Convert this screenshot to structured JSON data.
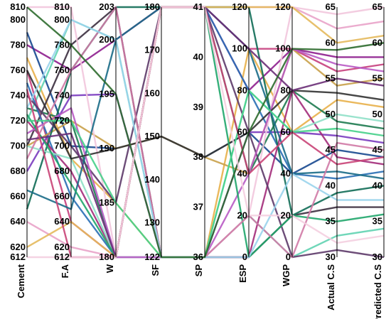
{
  "chart_data": {
    "type": "parallel_coordinates",
    "title": "",
    "axes": [
      {
        "name": "Cement",
        "range": [
          612,
          810
        ],
        "ticks": [
          612,
          620,
          640,
          660,
          680,
          700,
          720,
          740,
          760,
          780,
          800,
          810
        ]
      },
      {
        "name": "F.A",
        "range": [
          612,
          810
        ],
        "ticks": [
          612,
          620,
          640,
          660,
          680,
          700,
          720,
          740,
          760,
          780,
          800,
          810
        ]
      },
      {
        "name": "W",
        "range": [
          180,
          203
        ],
        "ticks": [
          180,
          185,
          190,
          195,
          200,
          203
        ]
      },
      {
        "name": "SF",
        "range": [
          122,
          180
        ],
        "ticks": [
          122,
          130,
          140,
          150,
          160,
          170,
          180
        ]
      },
      {
        "name": "SP",
        "range": [
          36,
          41
        ],
        "ticks": [
          36,
          37,
          38,
          39,
          40,
          41
        ]
      },
      {
        "name": "ESP",
        "range": [
          0,
          120
        ],
        "ticks": [
          0,
          20,
          40,
          60,
          80,
          100,
          120
        ]
      },
      {
        "name": "WGP",
        "range": [
          0,
          120
        ],
        "ticks": [
          0,
          20,
          40,
          60,
          80,
          100,
          120
        ]
      },
      {
        "name": "Actual C.S",
        "range": [
          30,
          65
        ],
        "ticks": [
          30,
          35,
          40,
          45,
          50,
          55,
          60,
          65
        ]
      },
      {
        "name": "Predicted C.S",
        "range": [
          30,
          65
        ],
        "ticks": [
          30,
          35,
          40,
          45,
          50,
          55,
          60,
          65
        ]
      }
    ],
    "series": [
      {
        "color": "#8e1e8e",
        "values": [
          780,
          760,
          200,
          180,
          41,
          80,
          100,
          58,
          58
        ]
      },
      {
        "color": "#17488f",
        "values": [
          790,
          700,
          190,
          150,
          38,
          60,
          40,
          45,
          44
        ]
      },
      {
        "color": "#e8b04a",
        "values": [
          770,
          690,
          185,
          122,
          36,
          100,
          60,
          52,
          51
        ]
      },
      {
        "color": "#e9a3c9",
        "values": [
          640,
          620,
          180,
          180,
          41,
          120,
          120,
          62,
          63
        ]
      },
      {
        "color": "#3c2f3f",
        "values": [
          700,
          780,
          203,
          122,
          36,
          0,
          20,
          37,
          37
        ]
      },
      {
        "color": "#1d7a4f",
        "values": [
          730,
          720,
          180,
          180,
          41,
          40,
          80,
          49,
          48
        ]
      },
      {
        "color": "#61d3b1",
        "values": [
          720,
          800,
          200,
          122,
          36,
          20,
          0,
          33,
          34
        ]
      },
      {
        "color": "#c73f7d",
        "values": [
          760,
          640,
          180,
          180,
          41,
          100,
          100,
          56,
          57
        ]
      },
      {
        "color": "#7a3bbf",
        "values": [
          680,
          740,
          195,
          122,
          36,
          60,
          60,
          47,
          46
        ]
      },
      {
        "color": "#2a6fb5",
        "values": [
          750,
          660,
          180,
          180,
          41,
          80,
          40,
          41,
          42
        ]
      },
      {
        "color": "#c9a14a",
        "values": [
          700,
          720,
          190,
          150,
          38,
          40,
          100,
          54,
          55
        ]
      },
      {
        "color": "#a32c7a",
        "values": [
          720,
          680,
          180,
          122,
          36,
          0,
          80,
          44,
          43
        ]
      },
      {
        "color": "#0f6b55",
        "values": [
          650,
          760,
          203,
          180,
          41,
          120,
          20,
          39,
          40
        ]
      },
      {
        "color": "#f2c7dd",
        "values": [
          810,
          810,
          180,
          122,
          36,
          20,
          120,
          64,
          65
        ]
      },
      {
        "color": "#5d3a69",
        "values": [
          740,
          700,
          185,
          180,
          41,
          60,
          0,
          31,
          30
        ]
      },
      {
        "color": "#8fe0c8",
        "values": [
          700,
          690,
          180,
          122,
          36,
          80,
          60,
          50,
          49
        ]
      },
      {
        "color": "#196c87",
        "values": [
          665,
          650,
          200,
          180,
          41,
          100,
          40,
          42,
          41
        ]
      },
      {
        "color": "#b85ac4",
        "values": [
          710,
          730,
          180,
          122,
          36,
          40,
          100,
          57,
          56
        ]
      },
      {
        "color": "#333333",
        "values": [
          760,
          690,
          190,
          150,
          38,
          60,
          80,
          53,
          52
        ]
      },
      {
        "color": "#20a66b",
        "values": [
          725,
          670,
          180,
          180,
          41,
          0,
          20,
          35,
          36
        ]
      },
      {
        "color": "#d07aa6",
        "values": [
          690,
          760,
          203,
          122,
          36,
          20,
          0,
          46,
          45
        ]
      },
      {
        "color": "#e4b95c",
        "values": [
          620,
          640,
          180,
          180,
          41,
          120,
          120,
          60,
          61
        ]
      },
      {
        "color": "#46d08a",
        "values": [
          720,
          720,
          185,
          122,
          36,
          80,
          60,
          48,
          47
        ]
      },
      {
        "color": "#6a2f77",
        "values": [
          705,
          710,
          180,
          180,
          41,
          100,
          80,
          55,
          54
        ]
      },
      {
        "color": "#9ad4ec",
        "values": [
          730,
          800,
          200,
          122,
          36,
          0,
          40,
          38,
          38
        ]
      },
      {
        "color": "#c94477",
        "values": [
          745,
          612,
          180,
          180,
          41,
          40,
          60,
          43,
          44
        ]
      },
      {
        "color": "#2d6b2d",
        "values": [
          810,
          780,
          195,
          122,
          36,
          60,
          100,
          59,
          60
        ]
      },
      {
        "color": "#f4cfe0",
        "values": [
          612,
          612,
          180,
          180,
          41,
          20,
          20,
          32,
          33
        ]
      }
    ]
  }
}
